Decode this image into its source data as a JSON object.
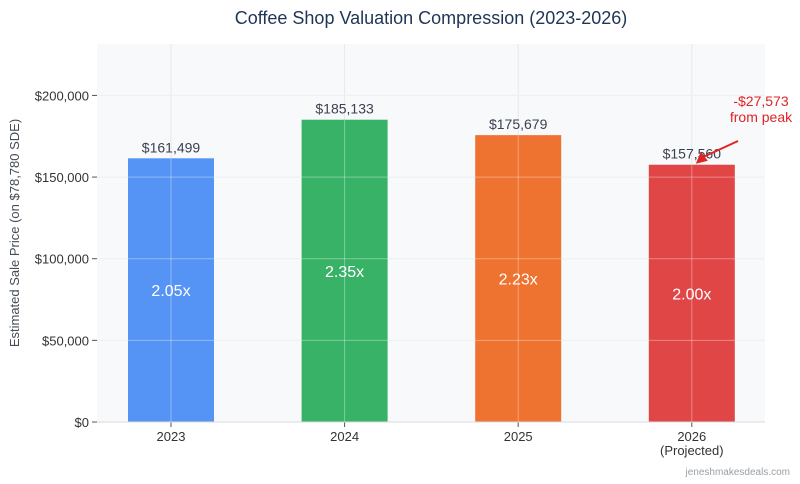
{
  "chart_data": {
    "type": "bar",
    "title": "Coffee Shop Valuation Compression (2023-2026)",
    "xlabel": "",
    "ylabel": "Estimated Sale Price (on $78,780 SDE)",
    "categories": [
      "2023",
      "2024",
      "2025",
      "2026\n(Projected)"
    ],
    "values": [
      161499,
      185133,
      175679,
      157560
    ],
    "value_labels": [
      "$161,499",
      "$185,133",
      "$175,679",
      "$157,560"
    ],
    "multiples": [
      "2.05x",
      "2.35x",
      "2.23x",
      "2.00x"
    ],
    "colors": [
      "#5594f4",
      "#38b266",
      "#ee7230",
      "#e04646"
    ],
    "ylim": [
      0,
      231500
    ],
    "yticks": [
      0,
      50000,
      100000,
      150000,
      200000
    ],
    "ytick_labels": [
      "$0",
      "$50,000",
      "$100,000",
      "$150,000",
      "$200,000"
    ],
    "grid": true,
    "annotation": {
      "text": [
        "-$27,573",
        "from peak"
      ],
      "target_category": "2026\n(Projected)",
      "color": "#e02424"
    }
  },
  "watermark": "jeneshmakesdeals.com"
}
